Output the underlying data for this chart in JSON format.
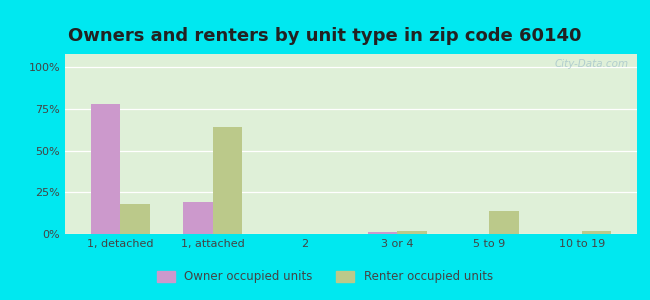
{
  "title": "Owners and renters by unit type in zip code 60140",
  "categories": [
    "1, detached",
    "1, attached",
    "2",
    "3 or 4",
    "5 to 9",
    "10 to 19"
  ],
  "owner_values": [
    78,
    19,
    0,
    1,
    0,
    0
  ],
  "renter_values": [
    18,
    64,
    0,
    2,
    14,
    2
  ],
  "owner_color": "#cc99cc",
  "renter_color": "#bbc98a",
  "plot_bg_color": "#dff0d8",
  "outer_background": "#00e8f0",
  "yticks": [
    0,
    25,
    50,
    75,
    100
  ],
  "ytick_labels": [
    "0%",
    "25%",
    "50%",
    "75%",
    "100%"
  ],
  "ylim": [
    0,
    108
  ],
  "bar_width": 0.32,
  "legend_owner_label": "Owner occupied units",
  "legend_renter_label": "Renter occupied units",
  "title_fontsize": 13,
  "title_color": "#222222",
  "tick_color": "#444444",
  "watermark": "City-Data.com"
}
